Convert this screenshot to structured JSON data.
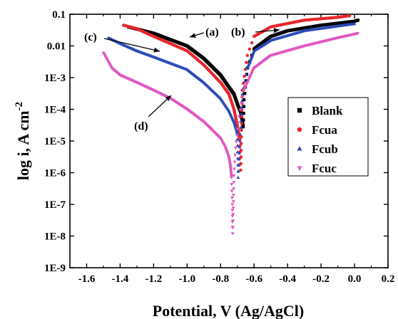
{
  "chart_data": {
    "type": "scatter",
    "title": "",
    "xlabel": "Potential, V (Ag/AgCl)",
    "ylabel_main": "log i, A cm",
    "ylabel_sup": "-2",
    "xlim": [
      -1.7,
      0.2
    ],
    "x_ticks": [
      -1.6,
      -1.4,
      -1.2,
      -1.0,
      -0.8,
      -0.6,
      -0.4,
      -0.2,
      0.0,
      0.2
    ],
    "x_tick_labels": [
      "-1.6",
      "-1.4",
      "-1.2",
      "-1.0",
      "-0.8",
      "-0.6",
      "-0.4",
      "-0.2",
      "0.0",
      "0.2"
    ],
    "ylim_log10": [
      -9,
      -1
    ],
    "y_ticks_log10": [
      -9,
      -8,
      -7,
      -6,
      -5,
      -4,
      -3,
      -2,
      -1
    ],
    "y_tick_labels": [
      "1E-9",
      "1E-8",
      "1E-7",
      "1E-6",
      "1E-5",
      "1E-4",
      "1E-3",
      "0.01",
      "0.1"
    ],
    "legend_position": "right-middle",
    "series": [
      {
        "name": "Blank",
        "color": "#000000",
        "marker": "square",
        "points": [
          [
            -1.35,
            0.04
          ],
          [
            -1.2,
            0.025
          ],
          [
            -1.0,
            0.01
          ],
          [
            -0.9,
            0.004
          ],
          [
            -0.8,
            0.0012
          ],
          [
            -0.75,
            0.0005
          ],
          [
            -0.72,
            0.0003
          ],
          [
            -0.7,
            0.00015
          ],
          [
            -0.68,
            8e-05
          ],
          [
            -0.665,
            2.8e-05
          ],
          [
            -0.66,
            0.0002
          ],
          [
            -0.64,
            0.002
          ],
          [
            -0.6,
            0.008
          ],
          [
            -0.5,
            0.02
          ],
          [
            -0.4,
            0.03
          ],
          [
            -0.2,
            0.045
          ],
          [
            0.0,
            0.06
          ],
          [
            0.02,
            0.065
          ]
        ]
      },
      {
        "name": "Fcua",
        "color": "#e8262d",
        "marker": "circle",
        "points": [
          [
            -1.38,
            0.045
          ],
          [
            -1.3,
            0.035
          ],
          [
            -1.2,
            0.02
          ],
          [
            -1.0,
            0.007
          ],
          [
            -0.9,
            0.0025
          ],
          [
            -0.8,
            0.0007
          ],
          [
            -0.75,
            0.0003
          ],
          [
            -0.72,
            0.0001
          ],
          [
            -0.7,
            3e-05
          ],
          [
            -0.685,
            1.1e-05
          ],
          [
            -0.68,
            1.2e-06
          ],
          [
            -0.67,
            0.0004
          ],
          [
            -0.64,
            0.005
          ],
          [
            -0.6,
            0.02
          ],
          [
            -0.5,
            0.04
          ],
          [
            -0.3,
            0.065
          ],
          [
            -0.1,
            0.08
          ],
          [
            -0.03,
            0.09
          ]
        ]
      },
      {
        "name": "Fcub",
        "color": "#2949b8",
        "marker": "triangle-up",
        "points": [
          [
            -1.47,
            0.018
          ],
          [
            -1.4,
            0.012
          ],
          [
            -1.3,
            0.007
          ],
          [
            -1.2,
            0.0045
          ],
          [
            -1.0,
            0.0018
          ],
          [
            -0.9,
            0.0007
          ],
          [
            -0.8,
            0.00022
          ],
          [
            -0.75,
            9e-05
          ],
          [
            -0.72,
            4e-05
          ],
          [
            -0.7,
            1.8e-05
          ],
          [
            -0.695,
            7e-07
          ],
          [
            -0.685,
            1e-05
          ],
          [
            -0.67,
            0.0003
          ],
          [
            -0.64,
            0.002
          ],
          [
            -0.6,
            0.007
          ],
          [
            -0.5,
            0.015
          ],
          [
            -0.3,
            0.03
          ],
          [
            0.0,
            0.05
          ]
        ]
      },
      {
        "name": "Fcuc",
        "color": "#e055c0",
        "marker": "triangle-down",
        "points": [
          [
            -1.5,
            0.006
          ],
          [
            -1.45,
            0.002
          ],
          [
            -1.4,
            0.0012
          ],
          [
            -1.3,
            0.0007
          ],
          [
            -1.2,
            0.0004
          ],
          [
            -1.1,
            0.00022
          ],
          [
            -1.0,
            0.0001
          ],
          [
            -0.9,
            4e-05
          ],
          [
            -0.8,
            1.2e-05
          ],
          [
            -0.77,
            6e-06
          ],
          [
            -0.75,
            3e-06
          ],
          [
            -0.74,
            1.5e-06
          ],
          [
            -0.735,
            7e-07
          ],
          [
            -0.73,
            1e-07
          ],
          [
            -0.728,
            1.2e-08
          ],
          [
            -0.72,
            8e-07
          ],
          [
            -0.71,
            6e-06
          ],
          [
            -0.69,
            6e-05
          ],
          [
            -0.66,
            0.0004
          ],
          [
            -0.6,
            0.002
          ],
          [
            -0.5,
            0.005
          ],
          [
            -0.3,
            0.01
          ],
          [
            -0.1,
            0.018
          ],
          [
            0.02,
            0.025
          ]
        ]
      }
    ],
    "annotations": [
      {
        "label": "(a)",
        "series": "Blank",
        "x": -0.98,
        "y": 0.04
      },
      {
        "label": "(b)",
        "series": "Fcua",
        "x": -0.55,
        "y": 0.045
      },
      {
        "label": "(c)",
        "series": "Fcub",
        "x": -1.5,
        "y": 0.025
      },
      {
        "label": "(d)",
        "series": "Fcuc",
        "x": -0.98,
        "y": 3e-05
      }
    ]
  }
}
